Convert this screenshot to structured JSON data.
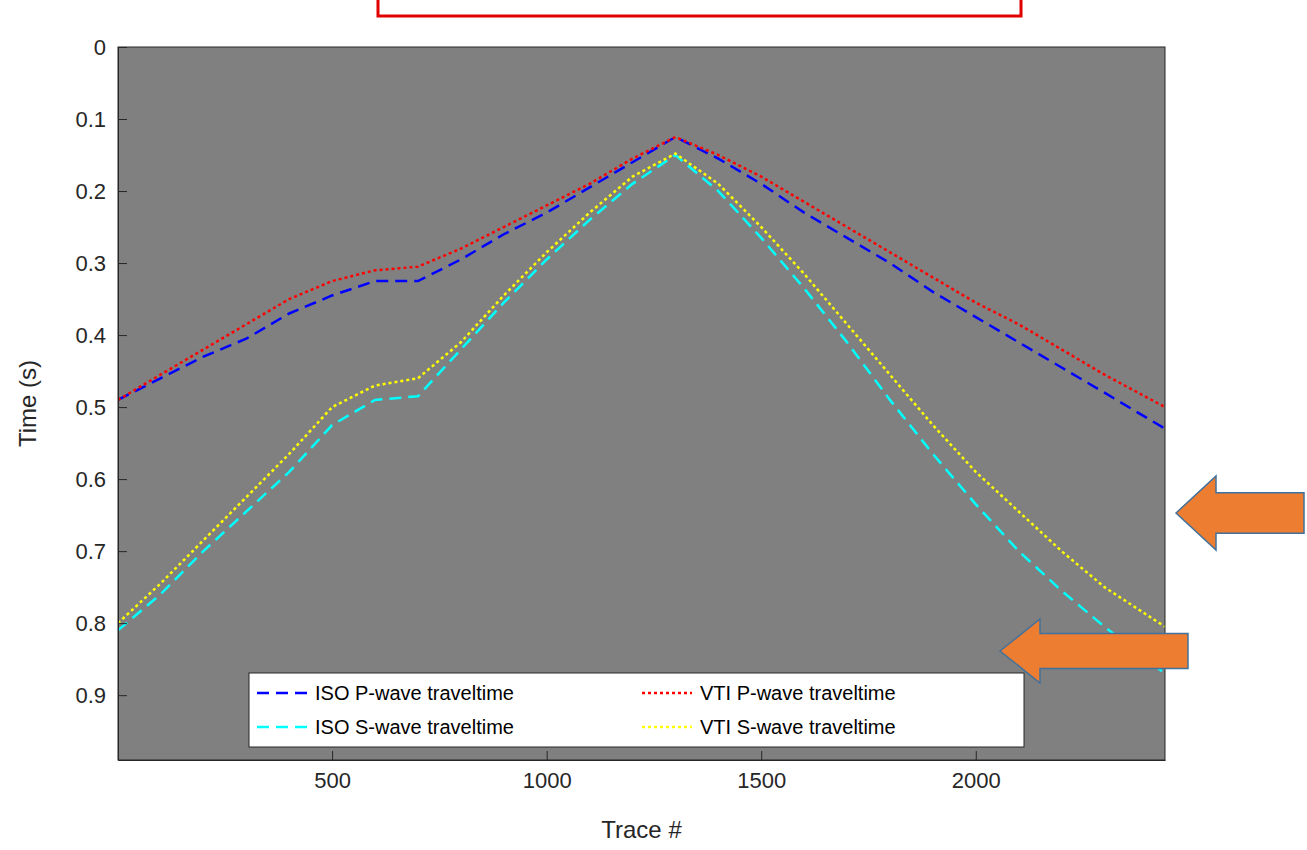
{
  "chart_data": {
    "type": "line",
    "x_label": "Trace #",
    "y_label": "Time (s)",
    "x": [
      1,
      100,
      200,
      300,
      400,
      500,
      600,
      700,
      800,
      900,
      1000,
      1100,
      1200,
      1300,
      1400,
      1500,
      1600,
      1700,
      1800,
      1900,
      2000,
      2100,
      2200,
      2300,
      2441
    ],
    "series": [
      {
        "name": "ISO P-wave traveltime",
        "color": "#0000ff",
        "line_style": "dashed",
        "values": [
          0.49,
          0.46,
          0.43,
          0.405,
          0.37,
          0.345,
          0.325,
          0.325,
          0.295,
          0.26,
          0.23,
          0.195,
          0.16,
          0.125,
          0.155,
          0.19,
          0.23,
          0.265,
          0.3,
          0.34,
          0.375,
          0.41,
          0.445,
          0.48,
          0.53
        ]
      },
      {
        "name": "VTI P-wave traveltime",
        "color": "#ff0000",
        "line_style": "dotted",
        "values": [
          0.49,
          0.455,
          0.42,
          0.385,
          0.35,
          0.325,
          0.31,
          0.305,
          0.28,
          0.25,
          0.22,
          0.19,
          0.155,
          0.125,
          0.15,
          0.18,
          0.215,
          0.25,
          0.285,
          0.32,
          0.355,
          0.385,
          0.42,
          0.455,
          0.5
        ]
      },
      {
        "name": "ISO S-wave traveltime",
        "color": "#00ffff",
        "line_style": "dashed",
        "values": [
          0.81,
          0.76,
          0.7,
          0.645,
          0.59,
          0.525,
          0.49,
          0.485,
          0.42,
          0.355,
          0.295,
          0.24,
          0.19,
          0.15,
          0.2,
          0.265,
          0.335,
          0.41,
          0.49,
          0.565,
          0.635,
          0.7,
          0.755,
          0.805,
          0.87
        ]
      },
      {
        "name": "VTI S-wave traveltime",
        "color": "#ffff00",
        "line_style": "dotted",
        "values": [
          0.8,
          0.745,
          0.685,
          0.625,
          0.565,
          0.5,
          0.47,
          0.46,
          0.41,
          0.345,
          0.285,
          0.23,
          0.18,
          0.148,
          0.19,
          0.25,
          0.315,
          0.385,
          0.455,
          0.525,
          0.59,
          0.645,
          0.7,
          0.75,
          0.805
        ]
      }
    ],
    "xlim": [
      1,
      2441
    ],
    "ylim": [
      0,
      0.99
    ],
    "xticks": [
      500,
      1000,
      1500,
      2000
    ],
    "yticks": [
      0,
      0.1,
      0.2,
      0.3,
      0.4,
      0.5,
      0.6,
      0.7,
      0.8,
      0.9
    ],
    "legend": "bottom",
    "grid": false
  }
}
